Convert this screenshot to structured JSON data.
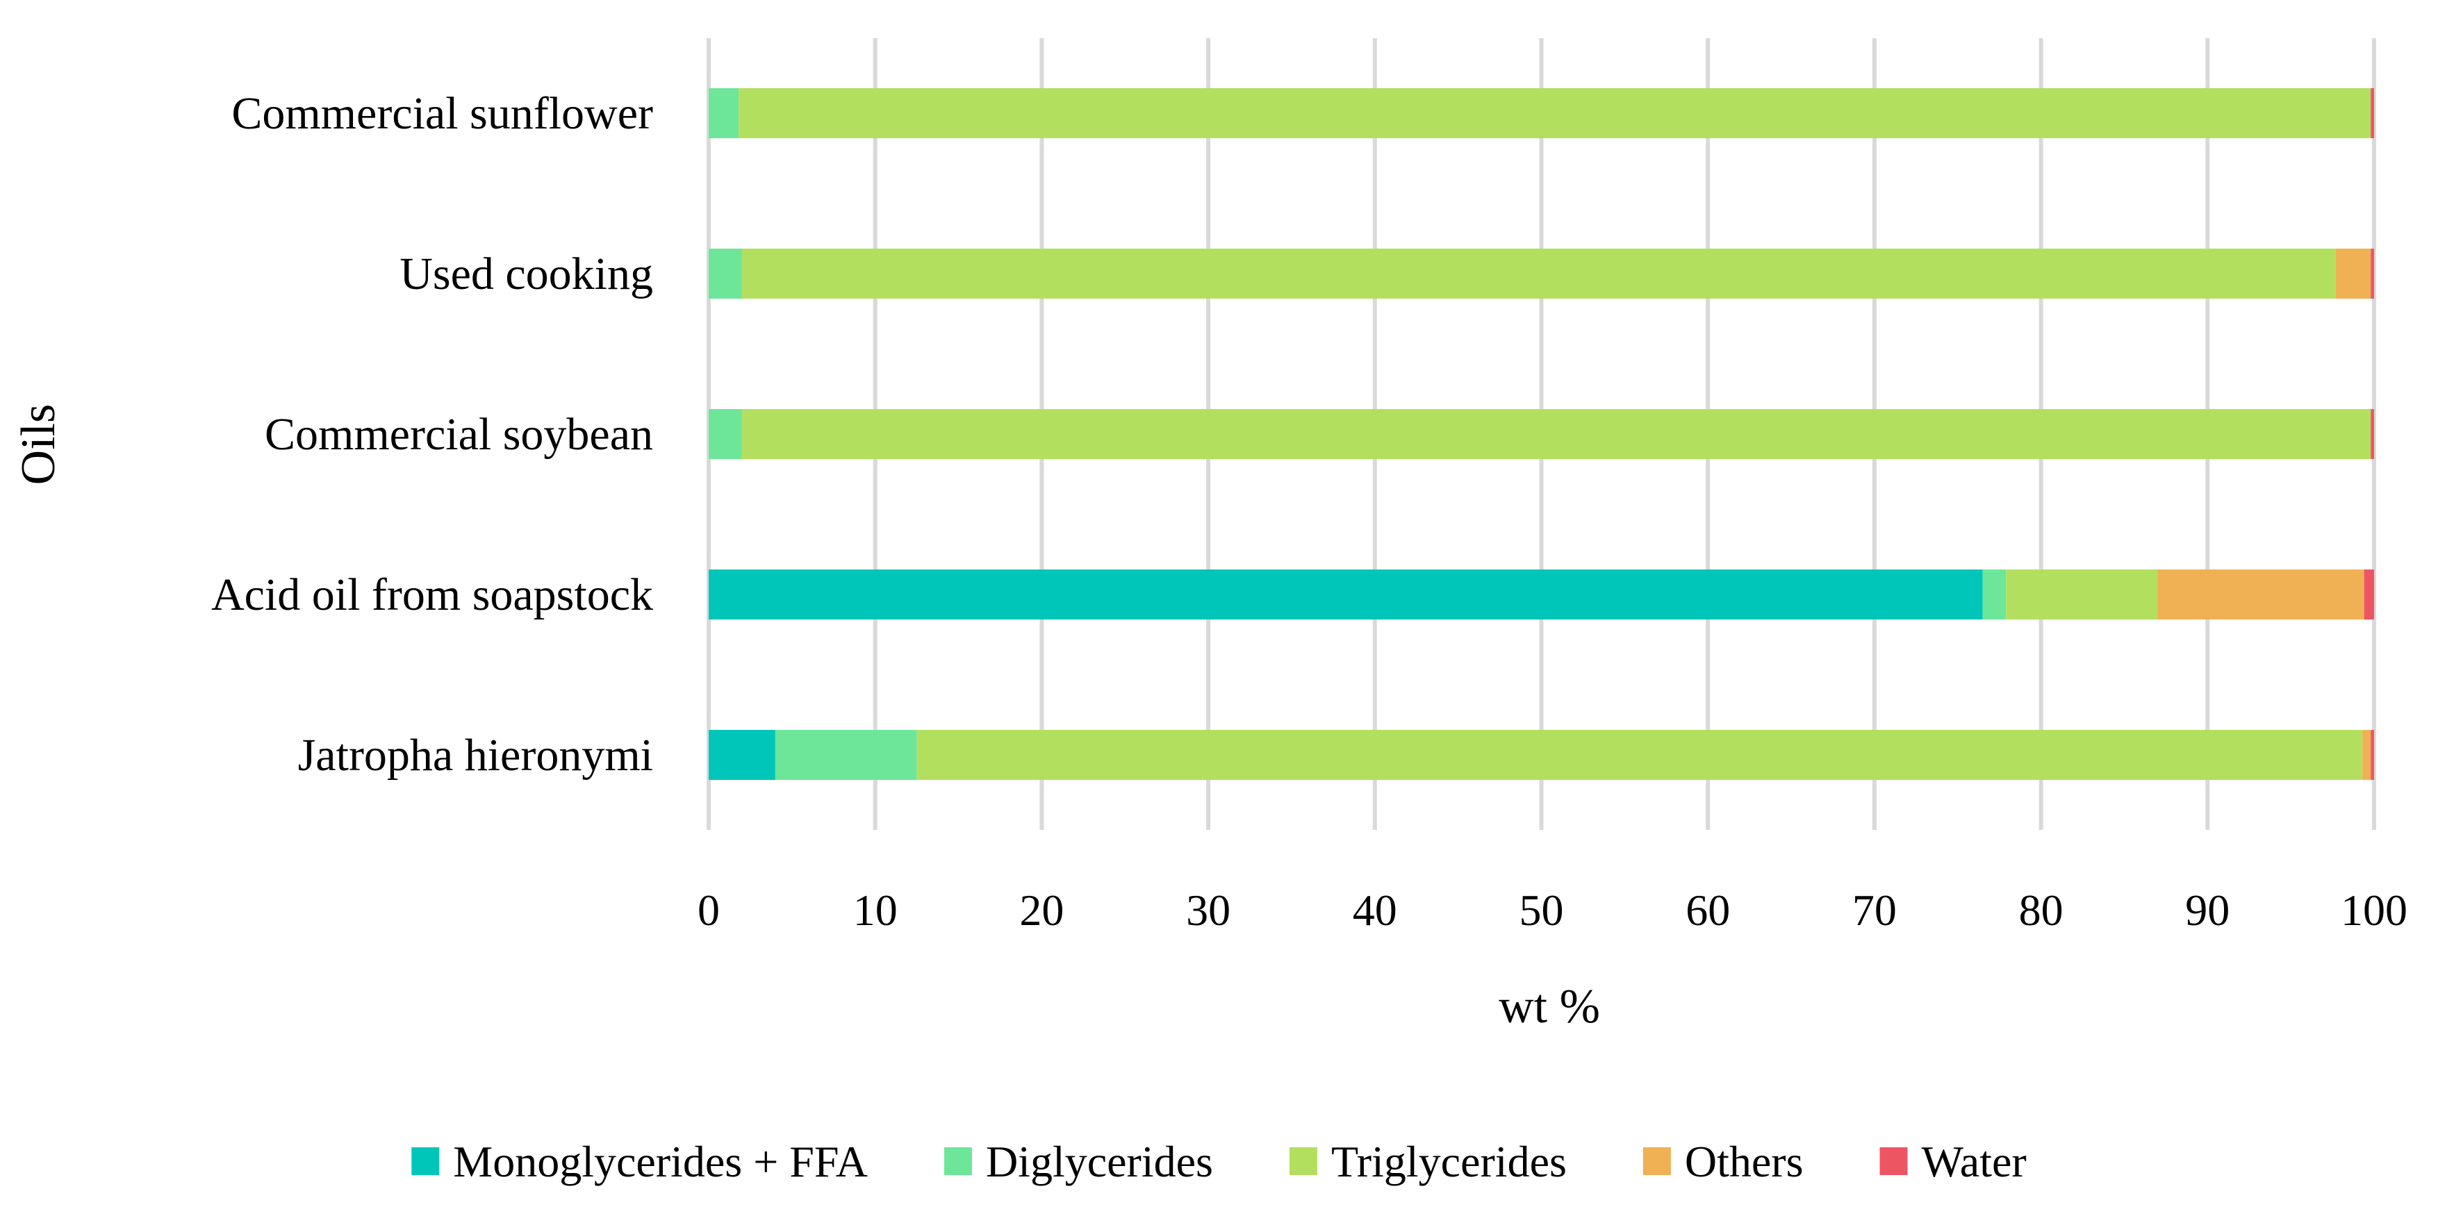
{
  "chart_data": {
    "type": "bar",
    "orientation": "horizontal",
    "stacked": true,
    "title": "",
    "xlabel": "wt %",
    "ylabel": "Oils",
    "xlim": [
      0,
      100
    ],
    "xticks": [
      "0",
      "10",
      "20",
      "30",
      "40",
      "50",
      "60",
      "70",
      "80",
      "90",
      "100"
    ],
    "grid": true,
    "legend_position": "bottom",
    "categories": [
      "Commercial sunflower",
      "Used cooking",
      "Commercial soybean",
      "Acid oil from soapstock",
      "Jatropha hieronymi"
    ],
    "series": [
      {
        "name": "Monoglycerides + FFA",
        "color": "#00c5b9",
        "values": [
          0,
          0,
          0,
          76.5,
          4.0
        ]
      },
      {
        "name": "Diglycerides",
        "color": "#6de69a",
        "values": [
          1.8,
          2.0,
          2.0,
          1.4,
          8.5
        ]
      },
      {
        "name": "Triglycerides",
        "color": "#b3df5f",
        "values": [
          98.0,
          95.7,
          97.8,
          9.1,
          86.8
        ]
      },
      {
        "name": "Others",
        "color": "#f0b054",
        "values": [
          0,
          2.1,
          0,
          12.4,
          0.5
        ]
      },
      {
        "name": "Water",
        "color": "#ee5563",
        "values": [
          0.2,
          0.2,
          0.2,
          0.6,
          0.2
        ]
      }
    ]
  }
}
